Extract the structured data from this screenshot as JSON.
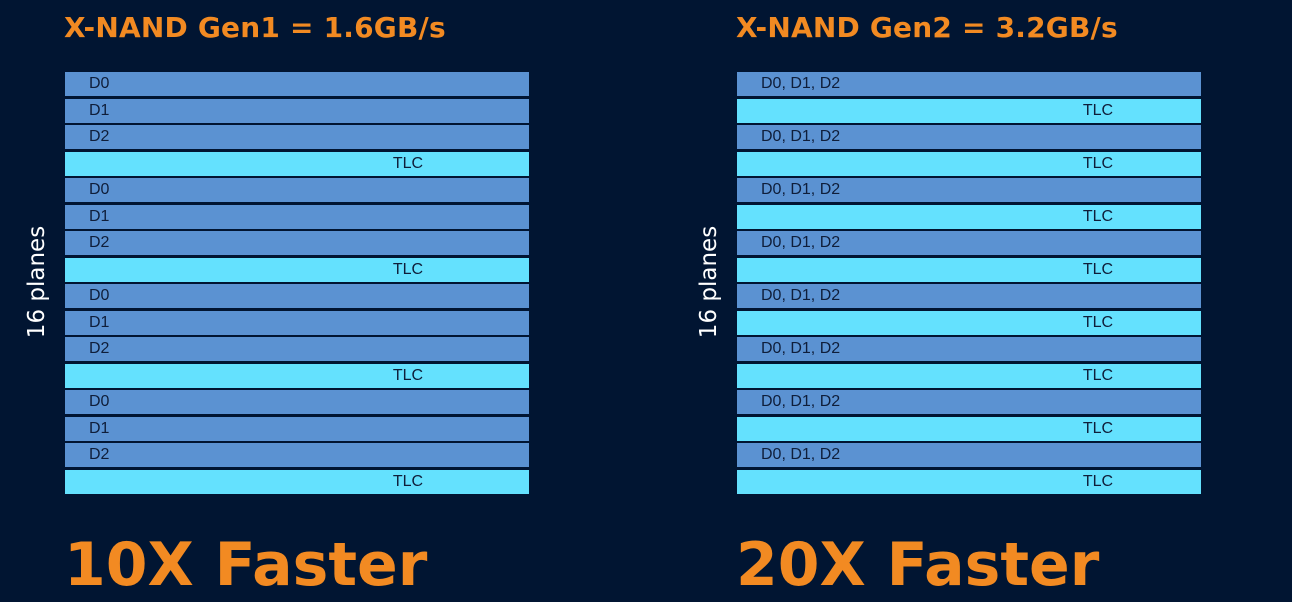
{
  "panels": [
    {
      "title": "X-NAND Gen1 = 1.6GB/s",
      "side_label": "16 planes",
      "planes": [
        {
          "label": "D0",
          "kind": "data"
        },
        {
          "label": "D1",
          "kind": "data"
        },
        {
          "label": "D2",
          "kind": "data"
        },
        {
          "label": "TLC",
          "kind": "tlc"
        },
        {
          "label": "D0",
          "kind": "data"
        },
        {
          "label": "D1",
          "kind": "data"
        },
        {
          "label": "D2",
          "kind": "data"
        },
        {
          "label": "TLC",
          "kind": "tlc"
        },
        {
          "label": "D0",
          "kind": "data"
        },
        {
          "label": "D1",
          "kind": "data"
        },
        {
          "label": "D2",
          "kind": "data"
        },
        {
          "label": "TLC",
          "kind": "tlc"
        },
        {
          "label": "D0",
          "kind": "data"
        },
        {
          "label": "D1",
          "kind": "data"
        },
        {
          "label": "D2",
          "kind": "data"
        },
        {
          "label": "TLC",
          "kind": "tlc"
        }
      ],
      "result": "10X Faster"
    },
    {
      "title": "X-NAND Gen2 = 3.2GB/s",
      "side_label": "16 planes",
      "planes": [
        {
          "label": "D0, D1, D2",
          "kind": "data"
        },
        {
          "label": "TLC",
          "kind": "tlc"
        },
        {
          "label": "D0, D1, D2",
          "kind": "data"
        },
        {
          "label": "TLC",
          "kind": "tlc"
        },
        {
          "label": "D0, D1, D2",
          "kind": "data"
        },
        {
          "label": "TLC",
          "kind": "tlc"
        },
        {
          "label": "D0, D1, D2",
          "kind": "data"
        },
        {
          "label": "TLC",
          "kind": "tlc"
        },
        {
          "label": "D0, D1, D2",
          "kind": "data"
        },
        {
          "label": "TLC",
          "kind": "tlc"
        },
        {
          "label": "D0, D1, D2",
          "kind": "data"
        },
        {
          "label": "TLC",
          "kind": "tlc"
        },
        {
          "label": "D0, D1, D2",
          "kind": "data"
        },
        {
          "label": "TLC",
          "kind": "tlc"
        },
        {
          "label": "D0, D1, D2",
          "kind": "data"
        },
        {
          "label": "TLC",
          "kind": "tlc"
        }
      ],
      "result": "20X Faster"
    }
  ],
  "colors": {
    "background": "#011532",
    "accent": "#F28A22",
    "data_plane": "#5B92D2",
    "tlc_plane": "#64E1FE",
    "plane_text": "#0F1E3A"
  }
}
